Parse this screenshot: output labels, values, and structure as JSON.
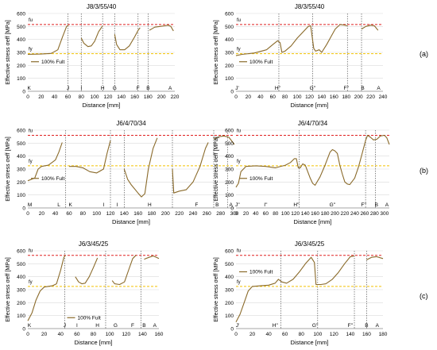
{
  "row_labels": [
    "(a)",
    "(b)",
    "(c)"
  ],
  "colors": {
    "curve": "#8a6a2a",
    "fu_line": "#e02020",
    "fy_line": "#f2c200",
    "vline": "#555555",
    "grid": "#d9d9d9"
  },
  "chart_data": [
    {
      "type": "line",
      "title": "J8/3/55/40",
      "xlabel": "Distance [mm]",
      "ylabel": "Effective stress σeff [MPa]",
      "xlim": [
        0,
        220
      ],
      "ylim": [
        0,
        600
      ],
      "xticks": [
        0,
        20,
        40,
        60,
        80,
        100,
        120,
        140,
        160,
        180,
        200,
        220
      ],
      "yticks": [
        0,
        100,
        200,
        300,
        400,
        500,
        600
      ],
      "fu": 515,
      "fy": 290,
      "fu_label": "fu",
      "fy_label": "fy",
      "legend": "100% Fult",
      "legend_position": "center-left",
      "grid": true,
      "sections": [
        {
          "label": "K",
          "x": 2
        },
        {
          "label": "J",
          "x": 60
        },
        {
          "label": "I",
          "x": 80
        },
        {
          "label": "H",
          "x": 112
        },
        {
          "label": "G",
          "x": 130
        },
        {
          "label": "F",
          "x": 165
        },
        {
          "label": "B",
          "x": 180
        },
        {
          "label": "A",
          "x": 213
        }
      ],
      "vlines": [
        60,
        80,
        112,
        130,
        165,
        180
      ],
      "segments": [
        [
          [
            0,
            285
          ],
          [
            20,
            287
          ],
          [
            35,
            292
          ],
          [
            45,
            320
          ],
          [
            52,
            420
          ],
          [
            58,
            500
          ],
          [
            61,
            510
          ]
        ],
        [
          [
            80,
            410
          ],
          [
            84,
            370
          ],
          [
            90,
            345
          ],
          [
            95,
            350
          ],
          [
            100,
            385
          ],
          [
            106,
            460
          ],
          [
            112,
            505
          ]
        ],
        [
          [
            130,
            440
          ],
          [
            133,
            360
          ],
          [
            138,
            320
          ],
          [
            145,
            320
          ],
          [
            152,
            350
          ],
          [
            160,
            420
          ],
          [
            165,
            470
          ],
          [
            168,
            490
          ]
        ],
        [
          [
            182,
            470
          ],
          [
            190,
            495
          ],
          [
            198,
            500
          ],
          [
            205,
            505
          ],
          [
            210,
            510
          ],
          [
            214,
            500
          ],
          [
            218,
            465
          ]
        ]
      ]
    },
    {
      "type": "line",
      "title": "J8/3/55/40",
      "xlabel": "Distance [mm]",
      "ylabel": "Effective stress σeff [MPa]",
      "xlim": [
        0,
        240
      ],
      "ylim": [
        0,
        600
      ],
      "xticks": [
        0,
        20,
        40,
        60,
        80,
        100,
        120,
        140,
        160,
        180,
        200,
        220,
        240
      ],
      "yticks": [
        0,
        100,
        200,
        300,
        400,
        500,
        600
      ],
      "fu": 515,
      "fy": 290,
      "fu_label": "fu",
      "fy_label": "fy",
      "legend": "100% Fult",
      "legend_position": "center-left",
      "grid": true,
      "sections": [
        {
          "label": "J'",
          "x": 2
        },
        {
          "label": "H''",
          "x": 68
        },
        {
          "label": "G''",
          "x": 125
        },
        {
          "label": "F''",
          "x": 180
        },
        {
          "label": "B",
          "x": 207
        },
        {
          "label": "A",
          "x": 233
        }
      ],
      "vlines": [
        70,
        125,
        182,
        205
      ],
      "segments": [
        [
          [
            0,
            275
          ],
          [
            10,
            285
          ],
          [
            30,
            295
          ],
          [
            50,
            320
          ],
          [
            60,
            360
          ],
          [
            68,
            390
          ],
          [
            72,
            375
          ],
          [
            75,
            300
          ],
          [
            80,
            310
          ],
          [
            90,
            350
          ],
          [
            100,
            410
          ],
          [
            110,
            460
          ],
          [
            118,
            500
          ],
          [
            122,
            505
          ],
          [
            127,
            330
          ],
          [
            130,
            310
          ],
          [
            136,
            320
          ],
          [
            140,
            300
          ],
          [
            148,
            360
          ],
          [
            155,
            420
          ],
          [
            162,
            480
          ],
          [
            170,
            515
          ],
          [
            178,
            510
          ],
          [
            182,
            505
          ]
        ],
        [
          [
            205,
            480
          ],
          [
            212,
            500
          ],
          [
            220,
            510
          ],
          [
            226,
            505
          ],
          [
            232,
            470
          ]
        ]
      ]
    },
    {
      "type": "line",
      "title": "J6/4/70/34",
      "xlabel": "Distance [mm]",
      "ylabel": "Effective stress σeff [MPa]",
      "xlim": [
        0,
        300
      ],
      "ylim": [
        0,
        600
      ],
      "xticks": [
        0,
        20,
        40,
        60,
        80,
        100,
        120,
        140,
        160,
        180,
        200,
        220,
        240,
        260,
        280,
        300
      ],
      "yticks": [
        0,
        100,
        200,
        300,
        400,
        500,
        600
      ],
      "fu": 560,
      "fy": 325,
      "fu_label": "fu",
      "fy_label": "fy",
      "legend": "100% Fult",
      "legend_position": "center-left",
      "grid": true,
      "sections": [
        {
          "label": "M",
          "x": 3
        },
        {
          "label": "L",
          "x": 45
        },
        {
          "label": "K",
          "x": 62
        },
        {
          "label": "I",
          "x": 110
        },
        {
          "label": "I",
          "x": 130
        },
        {
          "label": "H",
          "x": 177
        },
        {
          "label": "F",
          "x": 245
        },
        {
          "label": "B",
          "x": 275
        },
        {
          "label": "A",
          "x": 295
        }
      ],
      "vlines": [
        55,
        120,
        140,
        210,
        270,
        290
      ],
      "segments": [
        [
          [
            0,
            210
          ],
          [
            10,
            230
          ],
          [
            15,
            300
          ],
          [
            20,
            320
          ],
          [
            30,
            330
          ],
          [
            40,
            370
          ],
          [
            45,
            430
          ],
          [
            50,
            505
          ]
        ],
        [
          [
            60,
            320
          ],
          [
            70,
            320
          ],
          [
            80,
            310
          ],
          [
            90,
            280
          ],
          [
            100,
            270
          ],
          [
            110,
            300
          ],
          [
            115,
            420
          ],
          [
            120,
            520
          ]
        ],
        [
          [
            140,
            300
          ],
          [
            145,
            220
          ],
          [
            150,
            180
          ],
          [
            160,
            115
          ],
          [
            165,
            85
          ],
          [
            170,
            110
          ],
          [
            175,
            300
          ],
          [
            182,
            460
          ],
          [
            188,
            540
          ]
        ],
        [
          [
            210,
            300
          ],
          [
            212,
            115
          ],
          [
            220,
            130
          ],
          [
            230,
            140
          ],
          [
            240,
            200
          ],
          [
            250,
            320
          ],
          [
            258,
            460
          ],
          [
            262,
            505
          ]
        ],
        [
          [
            270,
            530
          ],
          [
            278,
            550
          ],
          [
            285,
            555
          ],
          [
            292,
            545
          ],
          [
            300,
            490
          ]
        ]
      ]
    },
    {
      "type": "line",
      "title": "J6/4/70/34",
      "xlabel": "Distance [mm]",
      "ylabel": "Effective stress σeff [MPa]",
      "xlim": [
        0,
        310
      ],
      "ylim": [
        0,
        600
      ],
      "xticks": [
        0,
        20,
        40,
        60,
        80,
        100,
        120,
        140,
        160,
        180,
        200,
        220,
        240,
        260,
        280,
        300
      ],
      "yticks": [
        0,
        100,
        200,
        300,
        400,
        500,
        600
      ],
      "fu": 560,
      "fy": 325,
      "fu_label": "fu",
      "fy_label": "fy",
      "legend": "100% Fult",
      "legend_position": "center-left",
      "grid": true,
      "sections": [
        {
          "label": "J''",
          "x": 3
        },
        {
          "label": "I''",
          "x": 60
        },
        {
          "label": "H''",
          "x": 122
        },
        {
          "label": "G''",
          "x": 195
        },
        {
          "label": "F''",
          "x": 258
        },
        {
          "label": "B",
          "x": 284
        },
        {
          "label": "A",
          "x": 305
        }
      ],
      "vlines": [
        128,
        262,
        282
      ],
      "segments": [
        [
          [
            0,
            160
          ],
          [
            5,
            190
          ],
          [
            10,
            280
          ],
          [
            20,
            320
          ],
          [
            40,
            325
          ],
          [
            60,
            320
          ],
          [
            80,
            310
          ],
          [
            100,
            330
          ],
          [
            110,
            350
          ],
          [
            118,
            380
          ],
          [
            122,
            380
          ],
          [
            126,
            310
          ],
          [
            130,
            310
          ],
          [
            135,
            340
          ],
          [
            140,
            330
          ],
          [
            150,
            230
          ],
          [
            155,
            190
          ],
          [
            160,
            175
          ],
          [
            170,
            240
          ],
          [
            180,
            330
          ],
          [
            190,
            430
          ],
          [
            195,
            450
          ],
          [
            200,
            440
          ],
          [
            205,
            420
          ],
          [
            210,
            330
          ],
          [
            215,
            260
          ],
          [
            220,
            200
          ],
          [
            225,
            185
          ],
          [
            230,
            180
          ],
          [
            240,
            230
          ],
          [
            248,
            320
          ],
          [
            255,
            420
          ],
          [
            262,
            520
          ],
          [
            266,
            560
          ],
          [
            272,
            545
          ],
          [
            278,
            525
          ],
          [
            285,
            530
          ],
          [
            292,
            555
          ],
          [
            300,
            560
          ],
          [
            305,
            540
          ],
          [
            310,
            490
          ]
        ]
      ]
    },
    {
      "type": "line",
      "title": "J6/3/45/25",
      "xlabel": "Distance [mm]",
      "ylabel": "Effective stress σeff [MPa]",
      "xlim": [
        0,
        160
      ],
      "ylim": [
        0,
        600
      ],
      "xticks": [
        0,
        20,
        40,
        60,
        80,
        100,
        120,
        140,
        160
      ],
      "yticks": [
        0,
        100,
        200,
        300,
        400,
        500,
        600
      ],
      "fu": 565,
      "fy": 325,
      "fu_label": "fu",
      "fy_label": "fy",
      "legend": "100% Fult",
      "legend_position": "bottom-center",
      "grid": true,
      "sections": [
        {
          "label": "K",
          "x": 2
        },
        {
          "label": "J",
          "x": 45
        },
        {
          "label": "I",
          "x": 60
        },
        {
          "label": "H",
          "x": 85
        },
        {
          "label": "G",
          "x": 107
        },
        {
          "label": "F",
          "x": 128
        },
        {
          "label": "B",
          "x": 142
        },
        {
          "label": "A",
          "x": 155
        }
      ],
      "vlines": [
        45,
        95,
        138
      ],
      "segments": [
        [
          [
            0,
            60
          ],
          [
            5,
            120
          ],
          [
            10,
            220
          ],
          [
            15,
            290
          ],
          [
            20,
            320
          ],
          [
            30,
            330
          ],
          [
            35,
            345
          ],
          [
            40,
            450
          ],
          [
            44,
            550
          ],
          [
            46,
            565
          ]
        ],
        [
          [
            58,
            400
          ],
          [
            62,
            360
          ],
          [
            66,
            345
          ],
          [
            70,
            350
          ],
          [
            75,
            400
          ],
          [
            80,
            470
          ],
          [
            85,
            545
          ]
        ],
        [
          [
            103,
            370
          ],
          [
            106,
            345
          ],
          [
            112,
            340
          ],
          [
            118,
            360
          ],
          [
            123,
            450
          ],
          [
            128,
            540
          ],
          [
            132,
            565
          ]
        ],
        [
          [
            142,
            535
          ],
          [
            148,
            550
          ],
          [
            153,
            560
          ],
          [
            157,
            550
          ],
          [
            160,
            540
          ]
        ]
      ]
    },
    {
      "type": "line",
      "title": "J6/3/45/25",
      "xlabel": "Distance [mm]",
      "ylabel": "Effective stress σeff [MPa]",
      "xlim": [
        0,
        180
      ],
      "ylim": [
        0,
        600
      ],
      "xticks": [
        0,
        20,
        40,
        60,
        80,
        100,
        120,
        140,
        160,
        180
      ],
      "yticks": [
        0,
        100,
        200,
        300,
        400,
        500,
        600
      ],
      "fu": 565,
      "fy": 325,
      "fu_label": "fu",
      "fy_label": "fy",
      "legend": "100% Fult",
      "legend_position": "top-left",
      "grid": true,
      "sections": [
        {
          "label": "J'",
          "x": 2
        },
        {
          "label": "H''",
          "x": 48
        },
        {
          "label": "G''",
          "x": 97
        },
        {
          "label": "F''",
          "x": 140
        },
        {
          "label": "B",
          "x": 160
        },
        {
          "label": "A",
          "x": 173
        }
      ],
      "vlines": [
        55,
        100,
        145,
        160
      ],
      "segments": [
        [
          [
            0,
            50
          ],
          [
            5,
            110
          ],
          [
            10,
            200
          ],
          [
            15,
            290
          ],
          [
            20,
            325
          ],
          [
            30,
            330
          ],
          [
            40,
            335
          ],
          [
            48,
            350
          ],
          [
            52,
            380
          ],
          [
            56,
            360
          ],
          [
            62,
            350
          ],
          [
            70,
            380
          ],
          [
            78,
            440
          ],
          [
            85,
            500
          ],
          [
            92,
            550
          ],
          [
            96,
            510
          ],
          [
            98,
            340
          ],
          [
            104,
            340
          ],
          [
            110,
            345
          ],
          [
            118,
            380
          ],
          [
            125,
            430
          ],
          [
            133,
            500
          ],
          [
            140,
            555
          ],
          [
            145,
            560
          ]
        ],
        [
          [
            160,
            530
          ],
          [
            166,
            550
          ],
          [
            172,
            555
          ],
          [
            180,
            540
          ]
        ]
      ]
    }
  ]
}
